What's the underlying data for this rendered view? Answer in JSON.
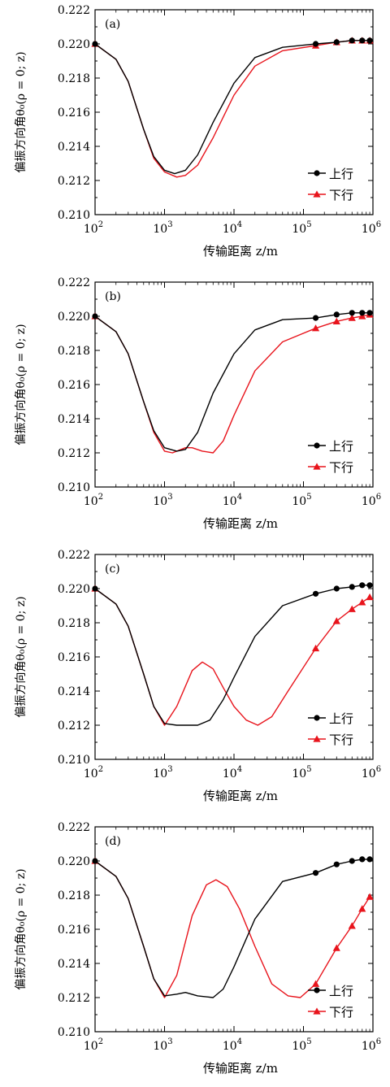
{
  "figure": {
    "ylabel": "偏振方向角θ₀(ρ = 0; z)",
    "xlabel": "传输距离 z/m",
    "yticks": [
      "0.210",
      "0.212",
      "0.214",
      "0.216",
      "0.218",
      "0.220",
      "0.222"
    ],
    "xticks": [
      {
        "base": "10",
        "exp": "2"
      },
      {
        "base": "10",
        "exp": "3"
      },
      {
        "base": "10",
        "exp": "4"
      },
      {
        "base": "10",
        "exp": "5"
      },
      {
        "base": "10",
        "exp": "6"
      }
    ],
    "colors": {
      "up": "#000000",
      "down": "#e8141c"
    },
    "legend": {
      "up": "上行",
      "down": "下行"
    }
  },
  "chart_data": [
    {
      "type": "line",
      "panel_label": "(a)",
      "x_scale": "log",
      "xlim": [
        100,
        1000000
      ],
      "ylim": [
        0.21,
        0.222
      ],
      "legend_position": "bottom-right",
      "series": [
        {
          "name": "上行",
          "marker": "circle",
          "x": [
            100,
            200,
            300,
            500,
            700,
            1000,
            1400,
            2000,
            3000,
            5000,
            10000,
            20000,
            50000,
            150000,
            300000,
            500000,
            700000,
            900000
          ],
          "y": [
            0.22,
            0.2191,
            0.2178,
            0.215,
            0.2134,
            0.2126,
            0.2124,
            0.2126,
            0.2135,
            0.2154,
            0.2177,
            0.2192,
            0.2198,
            0.22,
            0.2201,
            0.2202,
            0.2202,
            0.2202
          ],
          "marker_x": [
            100,
            150000,
            300000,
            500000,
            700000,
            900000
          ]
        },
        {
          "name": "下行",
          "marker": "triangle",
          "x": [
            100,
            200,
            300,
            500,
            700,
            1000,
            1500,
            2000,
            3000,
            5000,
            10000,
            20000,
            50000,
            150000,
            300000,
            500000,
            700000,
            900000
          ],
          "y": [
            0.22,
            0.2191,
            0.2178,
            0.215,
            0.2133,
            0.2125,
            0.2122,
            0.2123,
            0.2129,
            0.2145,
            0.217,
            0.2187,
            0.2196,
            0.2199,
            0.2201,
            0.2202,
            0.2202,
            0.2202
          ],
          "marker_x": [
            100,
            150000,
            300000,
            500000,
            700000,
            900000
          ]
        }
      ]
    },
    {
      "type": "line",
      "panel_label": "(b)",
      "x_scale": "log",
      "xlim": [
        100,
        1000000
      ],
      "ylim": [
        0.21,
        0.222
      ],
      "legend_position": "bottom-right",
      "series": [
        {
          "name": "上行",
          "marker": "circle",
          "x": [
            100,
            200,
            300,
            500,
            700,
            1000,
            1500,
            2000,
            3000,
            5000,
            10000,
            20000,
            50000,
            150000,
            300000,
            500000,
            700000,
            900000
          ],
          "y": [
            0.22,
            0.2191,
            0.2178,
            0.215,
            0.2133,
            0.2123,
            0.2121,
            0.2122,
            0.2132,
            0.2155,
            0.2178,
            0.2192,
            0.2198,
            0.2199,
            0.2201,
            0.2202,
            0.2202,
            0.2202
          ],
          "marker_x": [
            100,
            150000,
            300000,
            500000,
            700000,
            900000
          ]
        },
        {
          "name": "下行",
          "marker": "triangle",
          "x": [
            100,
            200,
            300,
            500,
            700,
            1000,
            1300,
            2000,
            2500,
            3500,
            5000,
            7000,
            10000,
            20000,
            50000,
            150000,
            300000,
            500000,
            700000,
            900000
          ],
          "y": [
            0.22,
            0.2191,
            0.2178,
            0.215,
            0.2132,
            0.2121,
            0.212,
            0.2123,
            0.2123,
            0.2121,
            0.212,
            0.2127,
            0.2142,
            0.2168,
            0.2185,
            0.2193,
            0.2197,
            0.2199,
            0.22,
            0.2201
          ],
          "marker_x": [
            100,
            150000,
            300000,
            500000,
            700000,
            900000
          ]
        }
      ]
    },
    {
      "type": "line",
      "panel_label": "(c)",
      "x_scale": "log",
      "xlim": [
        100,
        1000000
      ],
      "ylim": [
        0.21,
        0.222
      ],
      "legend_position": "bottom-right",
      "series": [
        {
          "name": "上行",
          "marker": "circle",
          "x": [
            100,
            200,
            300,
            500,
            700,
            1000,
            1500,
            2000,
            3000,
            4500,
            7000,
            10000,
            20000,
            50000,
            150000,
            300000,
            500000,
            700000,
            900000
          ],
          "y": [
            0.22,
            0.2191,
            0.2178,
            0.215,
            0.2131,
            0.2121,
            0.212,
            0.212,
            0.212,
            0.2123,
            0.2135,
            0.2148,
            0.2172,
            0.219,
            0.2197,
            0.22,
            0.2201,
            0.2202,
            0.2202
          ],
          "marker_x": [
            100,
            150000,
            300000,
            500000,
            700000,
            900000
          ]
        },
        {
          "name": "下行",
          "marker": "triangle",
          "x": [
            100,
            200,
            300,
            500,
            700,
            1000,
            1500,
            2500,
            3500,
            5000,
            7000,
            10000,
            15000,
            22000,
            35000,
            60000,
            150000,
            300000,
            500000,
            700000,
            900000
          ],
          "y": [
            0.22,
            0.2191,
            0.2178,
            0.215,
            0.2131,
            0.212,
            0.2131,
            0.2152,
            0.2157,
            0.2153,
            0.2142,
            0.2131,
            0.2123,
            0.212,
            0.2125,
            0.214,
            0.2165,
            0.2181,
            0.2188,
            0.2192,
            0.2195
          ],
          "marker_x": [
            100,
            150000,
            300000,
            500000,
            700000,
            900000
          ]
        }
      ]
    },
    {
      "type": "line",
      "panel_label": "(d)",
      "x_scale": "log",
      "xlim": [
        100,
        1000000
      ],
      "ylim": [
        0.21,
        0.222
      ],
      "legend_position": "bottom-right",
      "series": [
        {
          "name": "上行",
          "marker": "circle",
          "x": [
            100,
            200,
            300,
            500,
            700,
            1000,
            1500,
            2000,
            3000,
            5000,
            7000,
            10000,
            20000,
            50000,
            150000,
            300000,
            500000,
            700000,
            900000
          ],
          "y": [
            0.22,
            0.2191,
            0.2178,
            0.215,
            0.2131,
            0.2121,
            0.2122,
            0.2123,
            0.2121,
            0.212,
            0.2125,
            0.2138,
            0.2166,
            0.2188,
            0.2193,
            0.2198,
            0.22,
            0.2201,
            0.2201
          ],
          "marker_x": [
            100,
            150000,
            300000,
            500000,
            700000,
            900000
          ]
        },
        {
          "name": "下行",
          "marker": "triangle",
          "x": [
            100,
            200,
            300,
            500,
            700,
            1000,
            1500,
            2500,
            4000,
            5500,
            8000,
            12000,
            20000,
            35000,
            60000,
            90000,
            150000,
            300000,
            500000,
            700000,
            900000
          ],
          "y": [
            0.22,
            0.2191,
            0.2178,
            0.215,
            0.2131,
            0.212,
            0.2133,
            0.2168,
            0.2186,
            0.2189,
            0.2185,
            0.2172,
            0.215,
            0.2128,
            0.2121,
            0.212,
            0.2128,
            0.2149,
            0.2162,
            0.2172,
            0.2179
          ],
          "marker_x": [
            100,
            150000,
            300000,
            500000,
            700000,
            900000
          ]
        }
      ]
    }
  ]
}
